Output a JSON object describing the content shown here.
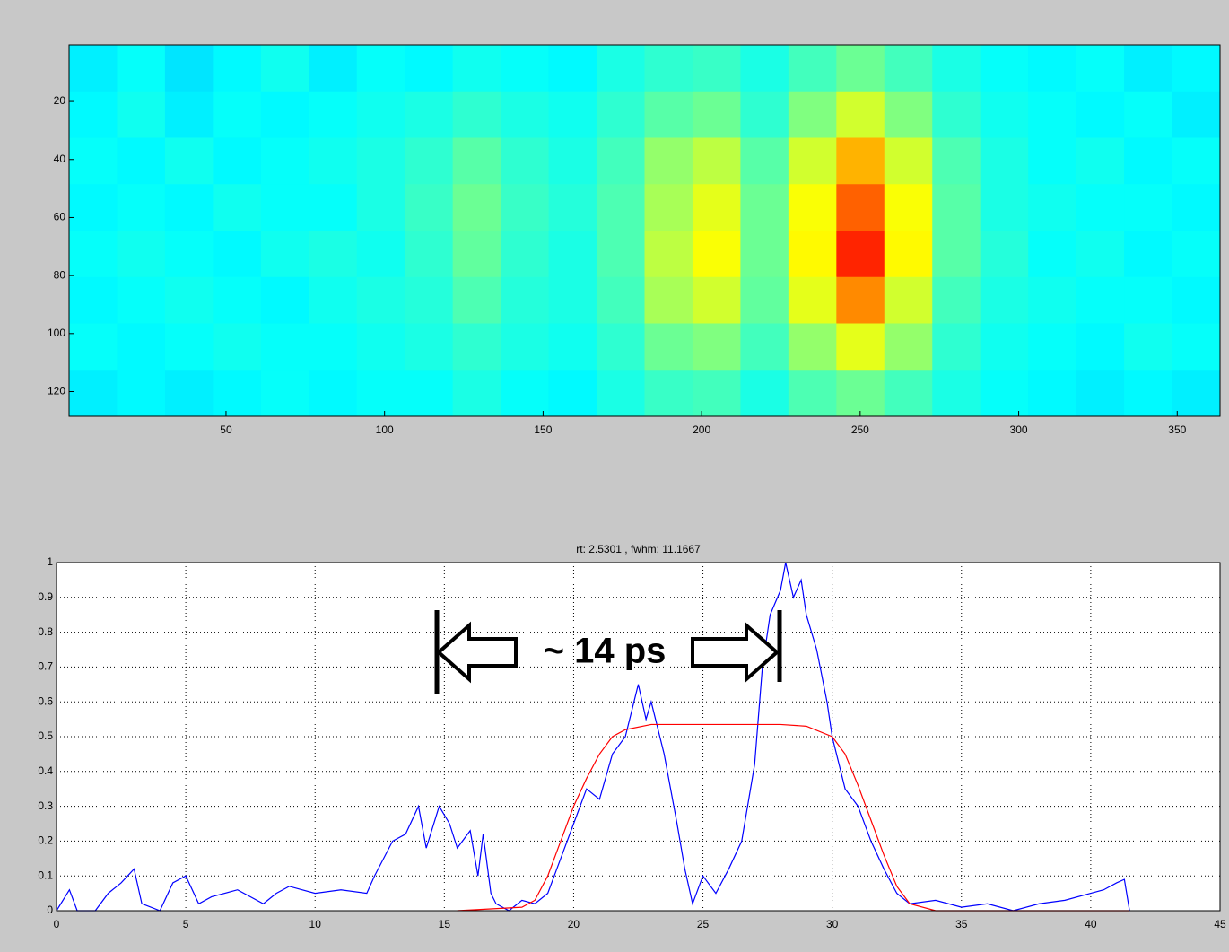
{
  "chart_data": [
    {
      "type": "heatmap",
      "xlim": [
        0.5,
        363.5
      ],
      "ylim": [
        0.5,
        128.5
      ],
      "xticks": [
        50,
        100,
        150,
        200,
        250,
        300,
        350
      ],
      "yticks": [
        20,
        40,
        60,
        80,
        100,
        120
      ],
      "clim": [
        0,
        1
      ],
      "values": [
        [
          0.36,
          0.38,
          0.35,
          0.37,
          0.39,
          0.36,
          0.38,
          0.37,
          0.39,
          0.38,
          0.37,
          0.4,
          0.42,
          0.43,
          0.4,
          0.44,
          0.48,
          0.44,
          0.4,
          0.38,
          0.37,
          0.38,
          0.36,
          0.37
        ],
        [
          0.37,
          0.39,
          0.36,
          0.38,
          0.37,
          0.38,
          0.39,
          0.4,
          0.42,
          0.4,
          0.39,
          0.42,
          0.46,
          0.48,
          0.42,
          0.5,
          0.58,
          0.5,
          0.42,
          0.39,
          0.38,
          0.37,
          0.38,
          0.36
        ],
        [
          0.38,
          0.37,
          0.39,
          0.37,
          0.38,
          0.39,
          0.4,
          0.42,
          0.46,
          0.42,
          0.4,
          0.44,
          0.52,
          0.56,
          0.46,
          0.58,
          0.7,
          0.58,
          0.45,
          0.4,
          0.38,
          0.39,
          0.37,
          0.38
        ],
        [
          0.37,
          0.38,
          0.37,
          0.39,
          0.38,
          0.38,
          0.4,
          0.43,
          0.48,
          0.43,
          0.41,
          0.45,
          0.54,
          0.6,
          0.48,
          0.62,
          0.78,
          0.62,
          0.46,
          0.4,
          0.39,
          0.38,
          0.38,
          0.37
        ],
        [
          0.38,
          0.39,
          0.38,
          0.37,
          0.39,
          0.4,
          0.39,
          0.42,
          0.47,
          0.42,
          0.4,
          0.45,
          0.56,
          0.62,
          0.48,
          0.63,
          0.84,
          0.63,
          0.46,
          0.41,
          0.38,
          0.39,
          0.37,
          0.38
        ],
        [
          0.37,
          0.38,
          0.39,
          0.38,
          0.37,
          0.39,
          0.4,
          0.41,
          0.45,
          0.41,
          0.4,
          0.44,
          0.54,
          0.58,
          0.47,
          0.6,
          0.74,
          0.58,
          0.44,
          0.4,
          0.39,
          0.38,
          0.38,
          0.37
        ],
        [
          0.38,
          0.37,
          0.38,
          0.39,
          0.38,
          0.38,
          0.39,
          0.4,
          0.42,
          0.4,
          0.39,
          0.42,
          0.48,
          0.5,
          0.44,
          0.52,
          0.6,
          0.52,
          0.42,
          0.39,
          0.38,
          0.37,
          0.39,
          0.38
        ],
        [
          0.36,
          0.37,
          0.36,
          0.37,
          0.38,
          0.37,
          0.38,
          0.38,
          0.4,
          0.38,
          0.37,
          0.4,
          0.43,
          0.44,
          0.4,
          0.45,
          0.48,
          0.44,
          0.4,
          0.38,
          0.37,
          0.36,
          0.37,
          0.36
        ]
      ]
    },
    {
      "type": "line",
      "title": "rt: 2.5301 , fwhm: 11.1667",
      "annotation": "~ 14 ps",
      "xlim": [
        0,
        45
      ],
      "ylim": [
        0,
        1
      ],
      "xticks": [
        0,
        5,
        10,
        15,
        20,
        25,
        30,
        35,
        40,
        45
      ],
      "yticks": [
        0,
        0.1,
        0.2,
        0.3,
        0.4,
        0.5,
        0.6,
        0.7,
        0.8,
        0.9,
        1
      ],
      "grid": true,
      "series": [
        {
          "color": "#0000ff",
          "x": [
            0,
            0.5,
            0.8,
            1.5,
            2,
            2.5,
            3,
            3.3,
            4,
            4.5,
            5,
            5.5,
            6,
            7,
            8,
            8.5,
            9,
            10,
            11,
            12,
            12.3,
            13,
            13.5,
            14,
            14.3,
            14.8,
            15.2,
            15.5,
            16,
            16.3,
            16.5,
            16.8,
            17,
            17.5,
            18,
            18.5,
            19,
            19.5,
            20,
            20.5,
            21,
            21.5,
            22,
            22.5,
            22.8,
            23,
            23.5,
            24,
            24.3,
            24.6,
            25,
            25.5,
            26,
            26.5,
            27,
            27.3,
            27.6,
            28,
            28.2,
            28.5,
            28.8,
            29,
            29.4,
            29.8,
            30,
            30.5,
            31,
            31.5,
            32,
            32.5,
            33,
            34,
            35,
            36,
            37,
            38,
            39,
            40,
            40.5,
            41,
            41.3,
            41.5
          ],
          "values": [
            0,
            0.06,
            0,
            0,
            0.05,
            0.08,
            0.12,
            0.02,
            0,
            0.08,
            0.1,
            0.02,
            0.04,
            0.06,
            0.02,
            0.05,
            0.07,
            0.05,
            0.06,
            0.05,
            0.1,
            0.2,
            0.22,
            0.3,
            0.18,
            0.3,
            0.25,
            0.18,
            0.23,
            0.1,
            0.22,
            0.05,
            0.02,
            0,
            0.03,
            0.02,
            0.05,
            0.15,
            0.25,
            0.35,
            0.32,
            0.45,
            0.5,
            0.65,
            0.55,
            0.6,
            0.45,
            0.25,
            0.12,
            0.02,
            0.1,
            0.05,
            0.12,
            0.2,
            0.42,
            0.7,
            0.85,
            0.92,
            1.0,
            0.9,
            0.95,
            0.85,
            0.75,
            0.6,
            0.5,
            0.35,
            0.3,
            0.2,
            0.12,
            0.05,
            0.02,
            0.03,
            0.01,
            0.02,
            0,
            0.02,
            0.03,
            0.05,
            0.06,
            0.08,
            0.09,
            0
          ]
        },
        {
          "color": "#ff0000",
          "x": [
            15.5,
            18,
            18.5,
            19,
            19.5,
            20,
            20.5,
            21,
            21.5,
            22,
            23,
            25,
            28,
            29,
            30,
            30.5,
            31,
            31.5,
            32,
            32.5,
            33,
            34,
            41.5
          ],
          "values": [
            0,
            0.01,
            0.03,
            0.1,
            0.2,
            0.3,
            0.38,
            0.45,
            0.5,
            0.52,
            0.535,
            0.535,
            0.535,
            0.53,
            0.5,
            0.45,
            0.36,
            0.26,
            0.16,
            0.07,
            0.02,
            0,
            0
          ]
        }
      ]
    }
  ]
}
